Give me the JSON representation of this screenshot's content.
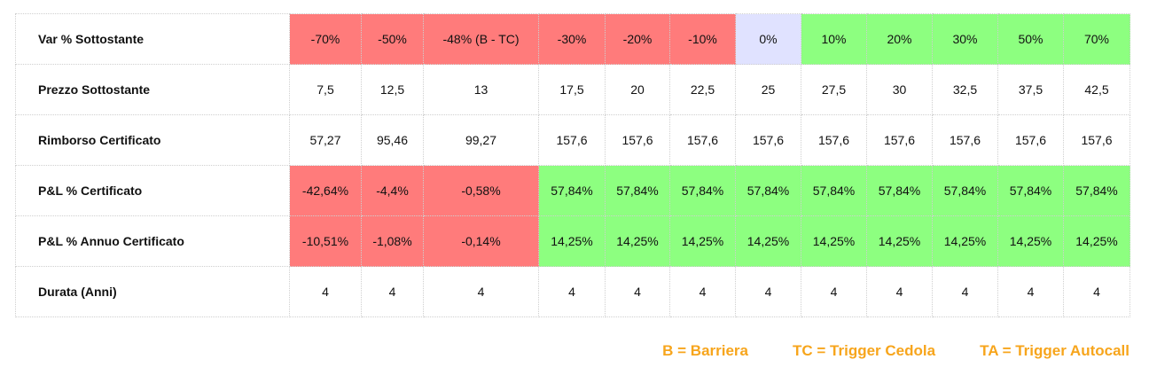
{
  "table": {
    "rows": [
      {
        "label": "Var % Sottostante",
        "cells": [
          {
            "v": "-70%",
            "bg": "red"
          },
          {
            "v": "-50%",
            "bg": "red"
          },
          {
            "v": "-48% (B - TC)",
            "bg": "red"
          },
          {
            "v": "-30%",
            "bg": "red"
          },
          {
            "v": "-20%",
            "bg": "red"
          },
          {
            "v": "-10%",
            "bg": "red"
          },
          {
            "v": "0%",
            "bg": "lav"
          },
          {
            "v": "10%",
            "bg": "green"
          },
          {
            "v": "20%",
            "bg": "green"
          },
          {
            "v": "30%",
            "bg": "green"
          },
          {
            "v": "50%",
            "bg": "green"
          },
          {
            "v": "70%",
            "bg": "green"
          }
        ]
      },
      {
        "label": "Prezzo Sottostante",
        "cells": [
          {
            "v": "7,5",
            "bg": ""
          },
          {
            "v": "12,5",
            "bg": ""
          },
          {
            "v": "13",
            "bg": ""
          },
          {
            "v": "17,5",
            "bg": ""
          },
          {
            "v": "20",
            "bg": ""
          },
          {
            "v": "22,5",
            "bg": ""
          },
          {
            "v": "25",
            "bg": ""
          },
          {
            "v": "27,5",
            "bg": ""
          },
          {
            "v": "30",
            "bg": ""
          },
          {
            "v": "32,5",
            "bg": ""
          },
          {
            "v": "37,5",
            "bg": ""
          },
          {
            "v": "42,5",
            "bg": ""
          }
        ]
      },
      {
        "label": "Rimborso Certificato",
        "cells": [
          {
            "v": "57,27",
            "bg": ""
          },
          {
            "v": "95,46",
            "bg": ""
          },
          {
            "v": "99,27",
            "bg": ""
          },
          {
            "v": "157,6",
            "bg": ""
          },
          {
            "v": "157,6",
            "bg": ""
          },
          {
            "v": "157,6",
            "bg": ""
          },
          {
            "v": "157,6",
            "bg": ""
          },
          {
            "v": "157,6",
            "bg": ""
          },
          {
            "v": "157,6",
            "bg": ""
          },
          {
            "v": "157,6",
            "bg": ""
          },
          {
            "v": "157,6",
            "bg": ""
          },
          {
            "v": "157,6",
            "bg": ""
          }
        ]
      },
      {
        "label": "P&L % Certificato",
        "cells": [
          {
            "v": "-42,64%",
            "bg": "red"
          },
          {
            "v": "-4,4%",
            "bg": "red"
          },
          {
            "v": "-0,58%",
            "bg": "red"
          },
          {
            "v": "57,84%",
            "bg": "green"
          },
          {
            "v": "57,84%",
            "bg": "green"
          },
          {
            "v": "57,84%",
            "bg": "green"
          },
          {
            "v": "57,84%",
            "bg": "green"
          },
          {
            "v": "57,84%",
            "bg": "green"
          },
          {
            "v": "57,84%",
            "bg": "green"
          },
          {
            "v": "57,84%",
            "bg": "green"
          },
          {
            "v": "57,84%",
            "bg": "green"
          },
          {
            "v": "57,84%",
            "bg": "green"
          }
        ]
      },
      {
        "label": "P&L % Annuo Certificato",
        "cells": [
          {
            "v": "-10,51%",
            "bg": "red"
          },
          {
            "v": "-1,08%",
            "bg": "red"
          },
          {
            "v": "-0,14%",
            "bg": "red"
          },
          {
            "v": "14,25%",
            "bg": "green"
          },
          {
            "v": "14,25%",
            "bg": "green"
          },
          {
            "v": "14,25%",
            "bg": "green"
          },
          {
            "v": "14,25%",
            "bg": "green"
          },
          {
            "v": "14,25%",
            "bg": "green"
          },
          {
            "v": "14,25%",
            "bg": "green"
          },
          {
            "v": "14,25%",
            "bg": "green"
          },
          {
            "v": "14,25%",
            "bg": "green"
          },
          {
            "v": "14,25%",
            "bg": "green"
          }
        ]
      },
      {
        "label": "Durata (Anni)",
        "cells": [
          {
            "v": "4",
            "bg": ""
          },
          {
            "v": "4",
            "bg": ""
          },
          {
            "v": "4",
            "bg": ""
          },
          {
            "v": "4",
            "bg": ""
          },
          {
            "v": "4",
            "bg": ""
          },
          {
            "v": "4",
            "bg": ""
          },
          {
            "v": "4",
            "bg": ""
          },
          {
            "v": "4",
            "bg": ""
          },
          {
            "v": "4",
            "bg": ""
          },
          {
            "v": "4",
            "bg": ""
          },
          {
            "v": "4",
            "bg": ""
          },
          {
            "v": "4",
            "bg": ""
          }
        ]
      }
    ]
  },
  "legend": {
    "barrier": "B = Barriera",
    "trigger_cedola": "TC = Trigger Cedola",
    "trigger_autocall": "TA = Trigger Autocall"
  },
  "colors": {
    "red": "#ff7b7b",
    "green": "#8dff80",
    "lavender": "#e0e2ff",
    "legend_text": "#f7a51c"
  }
}
